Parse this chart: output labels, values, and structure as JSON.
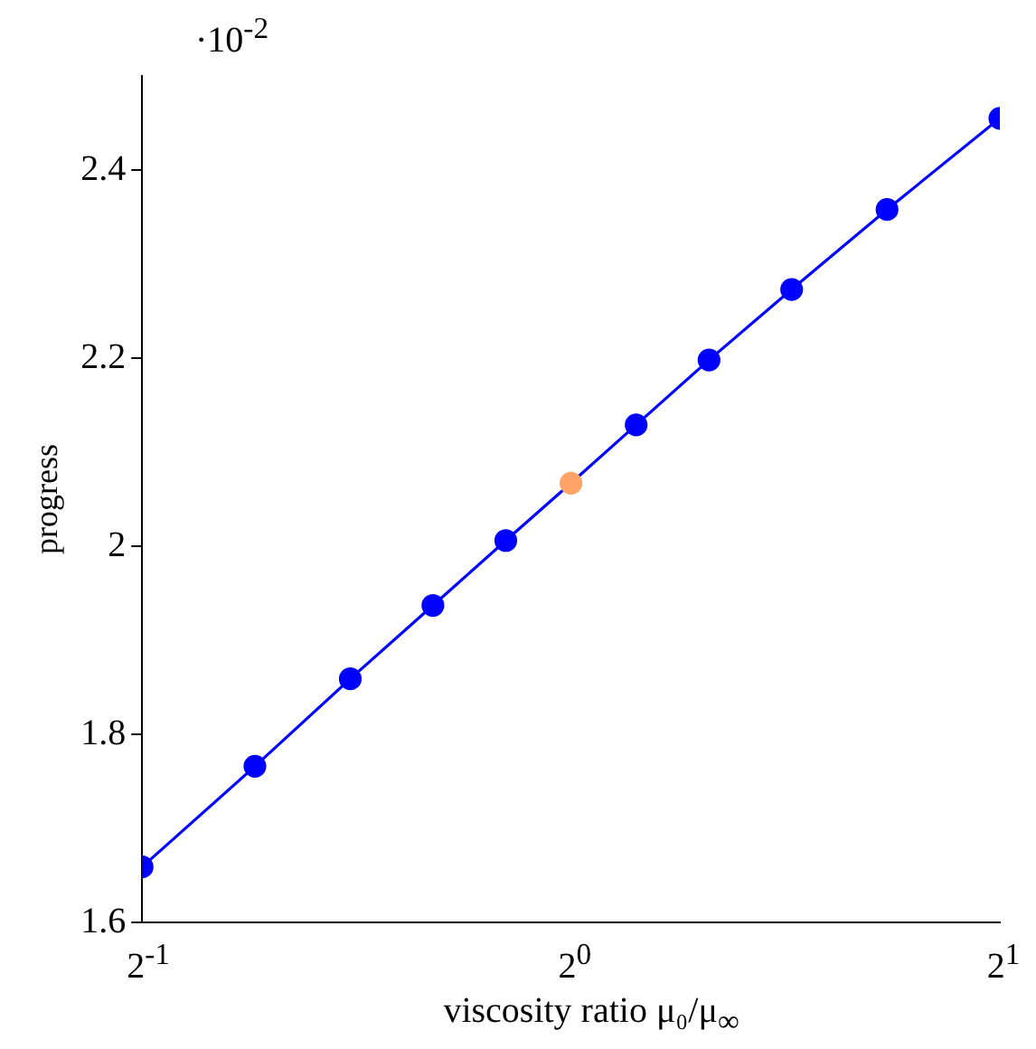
{
  "chart_data": {
    "type": "line",
    "xlabel": "viscosity ratio μ₀/μ$_{∞}$",
    "ylabel": "progress",
    "annotations": [
      "·10$^{-2}$"
    ],
    "x": [
      0.5,
      0.6,
      0.7,
      0.8,
      0.9,
      1,
      1.1111,
      1.25,
      1.4286,
      1.6667,
      2
    ],
    "series": [
      {
        "color": "#0000ff",
        "colors": [
          "#0000ff",
          "#0000ff",
          "#0000ff",
          "#0000ff",
          "#0000ff",
          "#ffa366",
          "#0000ff",
          "#0000ff",
          "#0000ff",
          "#0000ff",
          "#0000ff"
        ],
        "values": [
          1.659,
          1.766,
          1.859,
          1.937,
          2.006,
          2.067,
          2.129,
          2.198,
          2.273,
          2.358,
          2.455
        ]
      }
    ],
    "log": "x",
    "xlim": [
      0.5,
      2
    ],
    "xticks": [
      {
        "value": 0.5,
        "label": "2$^{-1}$"
      },
      {
        "value": 1,
        "label": "2$^{0}$"
      },
      {
        "value": 2,
        "label": "2$^{1}$"
      }
    ],
    "ylim": [
      1.6,
      2.5
    ],
    "yticks": [
      1.6,
      1.8,
      2,
      2.2,
      2.4
    ],
    "grid": false,
    "legend": false,
    "marker": "circle",
    "line_style": "solid"
  }
}
